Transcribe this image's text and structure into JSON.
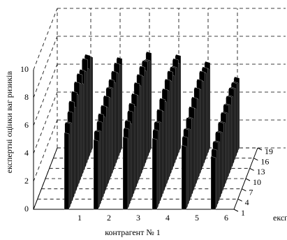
{
  "chart_data": {
    "type": "bar3d",
    "zlabel": "експертні оцінки ваг ризиків",
    "xlabel": "контрагент № 1",
    "ylabel": "експерти",
    "categories": [
      "1",
      "2",
      "3",
      "4",
      "5",
      "6"
    ],
    "ylim": [
      1,
      19
    ],
    "yticks": [
      1,
      4,
      7,
      10,
      13,
      16,
      19
    ],
    "zlim": [
      0,
      10
    ],
    "zticks": [
      0,
      2,
      4,
      6,
      8,
      10
    ],
    "color": "#000000",
    "grid": true,
    "values": [
      [
        5.5,
        6,
        5.8,
        6.3,
        6.8,
        6.2,
        7,
        6.6,
        7.2,
        6.9,
        7.3,
        6.4,
        7.1,
        6.8,
        7.4,
        6.5,
        7.2,
        6.9,
        6.6
      ],
      [
        5,
        5.4,
        5.2,
        5.6,
        5.9,
        5.5,
        6,
        5.7,
        6.2,
        5.9,
        6.3,
        6.1,
        6.4,
        6.0,
        6.5,
        6.2,
        6.6,
        6.3,
        6.5
      ],
      [
        5.2,
        5.6,
        5.9,
        5.5,
        6.1,
        6.4,
        6.0,
        6.6,
        6.3,
        6.9,
        6.5,
        7.0,
        6.7,
        7.1,
        6.6,
        7.0,
        6.8,
        6.6,
        6.9
      ],
      [
        5.1,
        5.5,
        5.8,
        5.6,
        6.2,
        5.9,
        6.5,
        6.1,
        6.7,
        6.4,
        6.9,
        6.6,
        7.0,
        6.5,
        6.8,
        6.6,
        6.9,
        6.4,
        6.7
      ],
      [
        4.6,
        5.0,
        5.3,
        5.1,
        5.6,
        5.4,
        5.9,
        5.6,
        6.1,
        5.8,
        6.3,
        6.0,
        6.4,
        6.1,
        6.5,
        6.2,
        6.3,
        6.0,
        6.2
      ],
      [
        3.8,
        4.1,
        4.4,
        4.2,
        4.6,
        4.4,
        4.8,
        4.6,
        5.0,
        4.8,
        5.1,
        4.9,
        5.2,
        5.0,
        5.3,
        5.1,
        5.2,
        5.0,
        5.1
      ]
    ]
  }
}
